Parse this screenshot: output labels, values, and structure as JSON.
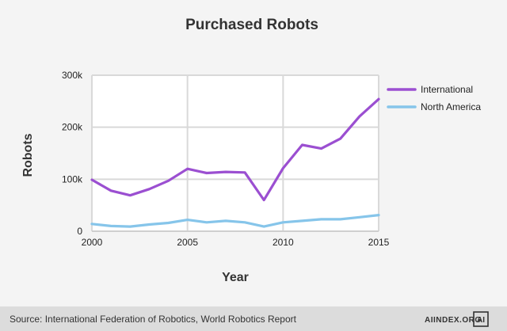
{
  "chart_data": {
    "type": "line",
    "title": "Purchased Robots",
    "xlabel": "Year",
    "ylabel": "Robots",
    "x": [
      2000,
      2001,
      2002,
      2003,
      2004,
      2005,
      2006,
      2007,
      2008,
      2009,
      2010,
      2011,
      2012,
      2013,
      2014,
      2015
    ],
    "xlim": [
      2000,
      2015
    ],
    "ylim": [
      0,
      300000
    ],
    "x_ticks": [
      2000,
      2005,
      2010,
      2015
    ],
    "x_tick_labels": [
      "2000",
      "2005",
      "2010",
      "2015"
    ],
    "y_ticks": [
      0,
      100000,
      200000,
      300000
    ],
    "y_tick_labels": [
      "0",
      "100k",
      "200k",
      "300k"
    ],
    "grid": true,
    "legend_position": "right",
    "series": [
      {
        "name": "International",
        "color": "#9b4fd1",
        "values": [
          99000,
          78000,
          69000,
          81000,
          97000,
          120000,
          112000,
          114000,
          113000,
          60000,
          121000,
          166000,
          159000,
          178000,
          221000,
          254000
        ]
      },
      {
        "name": "North America",
        "color": "#86c5ea",
        "values": [
          14000,
          10000,
          9000,
          13000,
          16000,
          22000,
          17000,
          20000,
          17000,
          9000,
          17000,
          20000,
          23000,
          23000,
          27000,
          31000
        ]
      }
    ]
  },
  "footer": {
    "source": "Source: International Federation of Robotics, World Robotics Report",
    "brand": "AIINDEX.ORG",
    "logo_text": "AI",
    "background_color": "#dcdcdc"
  }
}
